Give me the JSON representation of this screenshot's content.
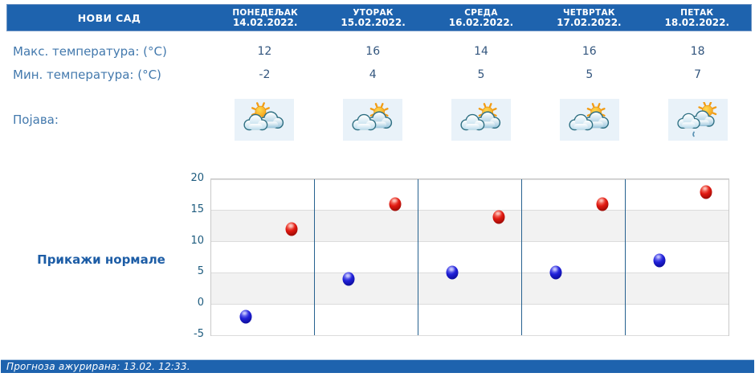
{
  "location": "НОВИ САД",
  "days": [
    {
      "name": "ПОНЕДЕЉАК",
      "date": "14.02.2022.",
      "max": 12,
      "min": -2,
      "icon": "sun-two-clouds"
    },
    {
      "name": "УТОРАК",
      "date": "15.02.2022.",
      "max": 16,
      "min": 4,
      "icon": "sun-behind-clouds"
    },
    {
      "name": "СРЕДА",
      "date": "16.02.2022.",
      "max": 14,
      "min": 5,
      "icon": "sun-behind-clouds"
    },
    {
      "name": "ЧЕТВРТАК",
      "date": "17.02.2022.",
      "max": 16,
      "min": 5,
      "icon": "sun-behind-clouds"
    },
    {
      "name": "ПЕТАК",
      "date": "18.02.2022.",
      "max": 18,
      "min": 7,
      "icon": "sun-clouds-light-rain"
    }
  ],
  "rows": {
    "max_label": "Макс. температура: (°C)",
    "min_label": "Мин. температура: (°C)",
    "phenomenon_label": "Појава:"
  },
  "normals_button": "Прикажи нормале",
  "footer": "Прогноза ажурирана:  13.02. 12:33.",
  "chart_data": {
    "type": "scatter",
    "categories": [
      "ПОНЕДЕЉАК",
      "УТОРАК",
      "СРЕДА",
      "ЧЕТВРТАК",
      "ПЕТАК"
    ],
    "series": [
      {
        "name": "Макс. температура",
        "color": "#d81414",
        "values": [
          12,
          16,
          14,
          16,
          18
        ]
      },
      {
        "name": "Мин. температура",
        "color": "#1414d8",
        "values": [
          -2,
          4,
          5,
          5,
          7
        ]
      }
    ],
    "yticks": [
      20,
      15,
      10,
      5,
      0,
      -5
    ],
    "ylim": [
      -5,
      20
    ],
    "grid": true,
    "band_color": "#f2f2f2",
    "separator_color": "#26618f",
    "legend": "none"
  },
  "colors": {
    "header_blue": "#1e63ae",
    "label_blue": "#4379ad",
    "value_blue": "#33567e",
    "tick_blue": "#1d5b7e",
    "icon_bg": "#e9f2f9"
  }
}
